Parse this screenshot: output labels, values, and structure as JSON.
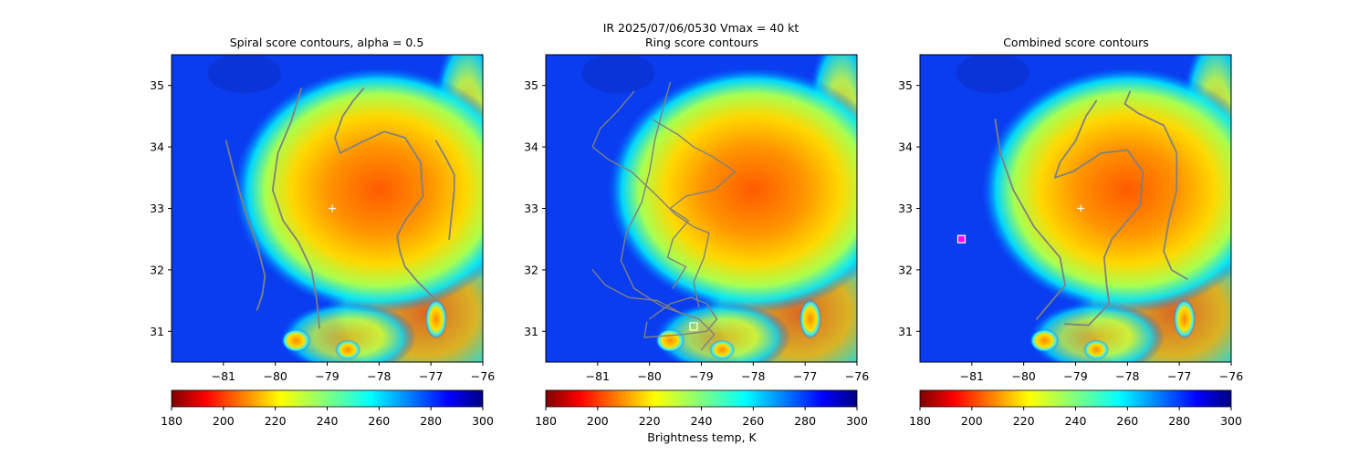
{
  "suptitle": "IR  2025/07/06/0530    Vmax = 40 kt",
  "colorbar_label": "Brightness temp, K",
  "colors": {
    "contour": "#808080",
    "marker_plus": "#ffffff",
    "marker_square_edge": "#ffffff",
    "marker_combined": "#ff00ff"
  },
  "chart_data": [
    {
      "type": "heatmap",
      "title": "Spiral score contours, alpha =  0.5",
      "xlim": [
        -82,
        -76
      ],
      "ylim": [
        30.5,
        35.5
      ],
      "xticks": [
        "-81",
        "-80",
        "-79",
        "-78",
        "-77",
        "-76"
      ],
      "yticks": [
        "31",
        "32",
        "33",
        "34",
        "35"
      ],
      "center_marker": {
        "lon": -78.9,
        "lat": 33.0,
        "shape": "plus"
      },
      "colormap": "jet_r",
      "colorbar": {
        "min": 180,
        "max": 300,
        "ticks": [
          "180",
          "200",
          "220",
          "240",
          "260",
          "280",
          "300"
        ]
      },
      "contours": [
        [
          [
            -80.95,
            34.1
          ],
          [
            -80.8,
            33.6
          ],
          [
            -80.6,
            33.0
          ],
          [
            -80.35,
            32.4
          ],
          [
            -80.2,
            31.9
          ],
          [
            -80.25,
            31.6
          ],
          [
            -80.35,
            31.35
          ]
        ],
        [
          [
            -79.5,
            34.95
          ],
          [
            -79.7,
            34.4
          ],
          [
            -79.95,
            33.9
          ],
          [
            -80.05,
            33.3
          ],
          [
            -79.85,
            32.8
          ],
          [
            -79.55,
            32.45
          ],
          [
            -79.3,
            32.0
          ],
          [
            -79.2,
            31.5
          ],
          [
            -79.15,
            31.05
          ]
        ],
        [
          [
            -78.3,
            34.95
          ],
          [
            -78.5,
            34.75
          ],
          [
            -78.7,
            34.5
          ],
          [
            -78.85,
            34.15
          ],
          [
            -78.75,
            33.9
          ],
          [
            -78.4,
            34.05
          ],
          [
            -77.9,
            34.25
          ],
          [
            -77.5,
            34.15
          ],
          [
            -77.2,
            33.75
          ],
          [
            -77.15,
            33.2
          ],
          [
            -77.5,
            32.8
          ],
          [
            -77.65,
            32.55
          ],
          [
            -77.6,
            32.3
          ],
          [
            -77.5,
            32.05
          ],
          [
            -77.25,
            31.8
          ],
          [
            -76.95,
            31.55
          ]
        ],
        [
          [
            -76.9,
            34.1
          ],
          [
            -76.7,
            33.8
          ],
          [
            -76.55,
            33.55
          ],
          [
            -76.55,
            33.3
          ],
          [
            -76.6,
            32.9
          ],
          [
            -76.65,
            32.5
          ]
        ]
      ]
    },
    {
      "type": "heatmap",
      "title": "Ring score contours",
      "xlim": [
        -82,
        -76
      ],
      "ylim": [
        30.5,
        35.5
      ],
      "xticks": [
        "-81",
        "-80",
        "-79",
        "-78",
        "-77",
        "-76"
      ],
      "yticks": [
        "31",
        "32",
        "33",
        "34",
        "35"
      ],
      "center_marker": {
        "lon": -79.15,
        "lat": 31.08,
        "shape": "square"
      },
      "colormap": "jet_r",
      "colorbar": {
        "min": 180,
        "max": 300,
        "ticks": [
          "180",
          "200",
          "220",
          "240",
          "260",
          "280",
          "300"
        ]
      },
      "contours": [
        [
          [
            -79.6,
            35.05
          ],
          [
            -79.75,
            34.6
          ],
          [
            -79.9,
            34.1
          ],
          [
            -80.0,
            33.6
          ],
          [
            -80.15,
            33.1
          ],
          [
            -80.45,
            32.6
          ],
          [
            -80.55,
            32.15
          ],
          [
            -80.3,
            31.7
          ],
          [
            -79.75,
            31.4
          ],
          [
            -79.05,
            31.2
          ],
          [
            -78.75,
            30.95
          ],
          [
            -79.0,
            30.7
          ]
        ],
        [
          [
            -80.3,
            34.9
          ],
          [
            -80.6,
            34.6
          ],
          [
            -80.95,
            34.3
          ],
          [
            -81.1,
            34.0
          ],
          [
            -80.8,
            33.8
          ],
          [
            -80.35,
            33.6
          ],
          [
            -79.85,
            33.2
          ],
          [
            -79.5,
            32.9
          ],
          [
            -79.15,
            32.7
          ],
          [
            -78.85,
            32.6
          ],
          [
            -78.95,
            32.2
          ],
          [
            -79.15,
            31.8
          ],
          [
            -79.05,
            31.4
          ]
        ],
        [
          [
            -79.95,
            34.45
          ],
          [
            -79.45,
            34.2
          ],
          [
            -79.15,
            34.0
          ],
          [
            -78.8,
            33.85
          ],
          [
            -78.35,
            33.6
          ],
          [
            -78.75,
            33.3
          ],
          [
            -79.3,
            33.2
          ],
          [
            -79.6,
            33.0
          ],
          [
            -79.25,
            32.8
          ],
          [
            -79.55,
            32.5
          ],
          [
            -79.65,
            32.2
          ],
          [
            -79.3,
            32.05
          ],
          [
            -79.55,
            31.7
          ]
        ],
        [
          [
            -80.0,
            31.2
          ],
          [
            -79.6,
            31.45
          ],
          [
            -79.2,
            31.55
          ],
          [
            -78.9,
            31.45
          ],
          [
            -78.7,
            31.2
          ],
          [
            -78.9,
            31.0
          ],
          [
            -79.35,
            30.95
          ],
          [
            -80.1,
            30.9
          ],
          [
            -80.05,
            31.15
          ]
        ],
        [
          [
            -81.1,
            32.0
          ],
          [
            -80.85,
            31.75
          ],
          [
            -80.4,
            31.55
          ],
          [
            -79.85,
            31.5
          ],
          [
            -79.4,
            31.3
          ]
        ]
      ]
    },
    {
      "type": "heatmap",
      "title": "Combined score contours",
      "xlim": [
        -82,
        -76
      ],
      "ylim": [
        30.5,
        35.5
      ],
      "xticks": [
        "-81",
        "-80",
        "-79",
        "-78",
        "-77",
        "-76"
      ],
      "yticks": [
        "31",
        "32",
        "33",
        "34",
        "35"
      ],
      "center_marker": {
        "lon": -78.9,
        "lat": 33.0,
        "shape": "plus"
      },
      "combined_marker": {
        "lon": -81.2,
        "lat": 32.5,
        "shape": "square"
      },
      "colormap": "jet_r",
      "colorbar": {
        "min": 180,
        "max": 300,
        "ticks": [
          "180",
          "200",
          "220",
          "240",
          "260",
          "280",
          "300"
        ]
      },
      "contours": [
        [
          [
            -80.55,
            34.45
          ],
          [
            -80.45,
            33.9
          ],
          [
            -80.2,
            33.3
          ],
          [
            -79.8,
            32.7
          ],
          [
            -79.3,
            32.2
          ],
          [
            -79.2,
            31.75
          ],
          [
            -79.55,
            31.4
          ],
          [
            -79.75,
            31.2
          ]
        ],
        [
          [
            -78.6,
            34.75
          ],
          [
            -78.8,
            34.5
          ],
          [
            -79.0,
            34.1
          ],
          [
            -79.3,
            33.75
          ],
          [
            -79.4,
            33.5
          ],
          [
            -79.05,
            33.6
          ],
          [
            -78.5,
            33.9
          ],
          [
            -78.0,
            33.95
          ],
          [
            -77.7,
            33.6
          ],
          [
            -77.75,
            33.05
          ],
          [
            -78.05,
            32.75
          ],
          [
            -78.3,
            32.5
          ],
          [
            -78.45,
            32.2
          ],
          [
            -78.4,
            31.75
          ],
          [
            -78.35,
            31.45
          ],
          [
            -78.75,
            31.1
          ],
          [
            -79.2,
            31.12
          ]
        ],
        [
          [
            -77.95,
            34.9
          ],
          [
            -78.05,
            34.7
          ],
          [
            -77.8,
            34.55
          ],
          [
            -77.3,
            34.35
          ],
          [
            -77.05,
            33.9
          ],
          [
            -77.05,
            33.3
          ],
          [
            -77.2,
            32.8
          ],
          [
            -77.3,
            32.3
          ],
          [
            -77.15,
            32.0
          ],
          [
            -76.85,
            31.85
          ]
        ]
      ]
    }
  ]
}
